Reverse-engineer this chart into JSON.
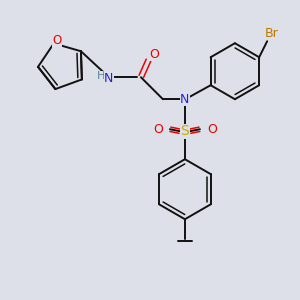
{
  "bg_color": "#dde0e8",
  "bond_color": "#111111",
  "colors": {
    "O": "#ee0000",
    "N": "#2222dd",
    "S": "#ccaa00",
    "Br": "#bb7700",
    "H": "#558899",
    "C": "#111111"
  }
}
